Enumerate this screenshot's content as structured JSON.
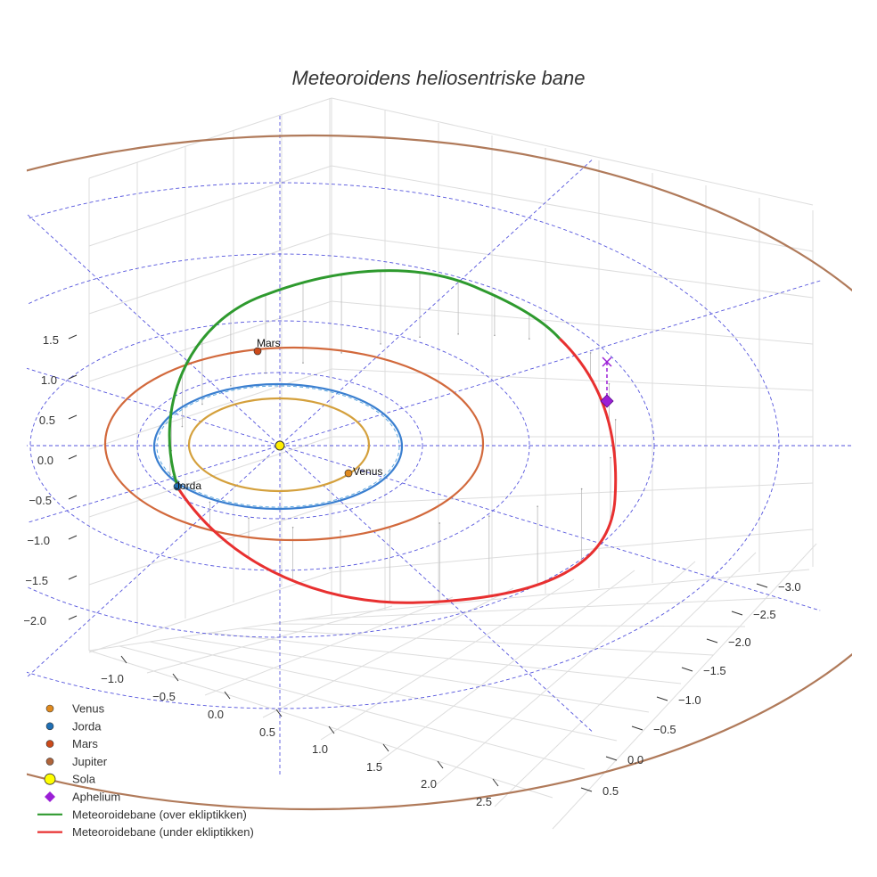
{
  "chart_data": {
    "type": "line",
    "title": "Meteoroidens heliosentriske bane",
    "axes": {
      "z_ticks": [
        "1.5",
        "1.0",
        "0.5",
        "0.0",
        "−0.5",
        "−1.0",
        "−1.5",
        "−2.0"
      ],
      "front_ticks": [
        "−1.0",
        "−0.5",
        "0.0",
        "0.5",
        "1.0",
        "1.5",
        "2.0",
        "2.5"
      ],
      "right_ticks": [
        "−3.0",
        "−2.5",
        "−2.0",
        "−1.5",
        "−1.0",
        "−0.5",
        "0.0",
        "0.5"
      ],
      "grid": true
    },
    "orbits": [
      {
        "name": "Venus",
        "radius_au": 0.72,
        "color": "#d4a03c"
      },
      {
        "name": "Jorda",
        "radius_au": 1.0,
        "color": "#3a7fd0"
      },
      {
        "name": "Mars",
        "radius_au": 1.52,
        "color": "#d2693c"
      },
      {
        "name": "Jupiter",
        "radius_au": 5.2,
        "color": "#b07a5a"
      }
    ],
    "reference_circles_au": [
      2.0,
      2.5,
      3.0,
      3.5
    ],
    "planet_labels": [
      "Mars",
      "Venus",
      "Jorda"
    ],
    "meteoroid": {
      "perihelion_au": 0.9,
      "aphelion_au": 3.4,
      "above_color": "#2e9a2e",
      "below_color": "#e83030"
    },
    "aphelion_color": "#9b1fd6",
    "sun_color": "#ffee00",
    "legend": {
      "position": "bottom-left",
      "entries": [
        {
          "label": "Venus",
          "marker": "circle",
          "color": "#e08a1e"
        },
        {
          "label": "Jorda",
          "marker": "circle",
          "color": "#1f6fb4"
        },
        {
          "label": "Mars",
          "marker": "circle",
          "color": "#cc4a1a"
        },
        {
          "label": "Jupiter",
          "marker": "circle",
          "color": "#b0643a"
        },
        {
          "label": "Sola",
          "marker": "circle-large",
          "color": "#ffff00"
        },
        {
          "label": "Aphelium",
          "marker": "diamond",
          "color": "#9b1fd6"
        },
        {
          "label": "Meteoroidebane (over ekliptikken)",
          "marker": "line",
          "color": "#2e9a2e"
        },
        {
          "label": "Meteoroidebane (under ekliptikken)",
          "marker": "line",
          "color": "#e83030"
        }
      ]
    }
  }
}
